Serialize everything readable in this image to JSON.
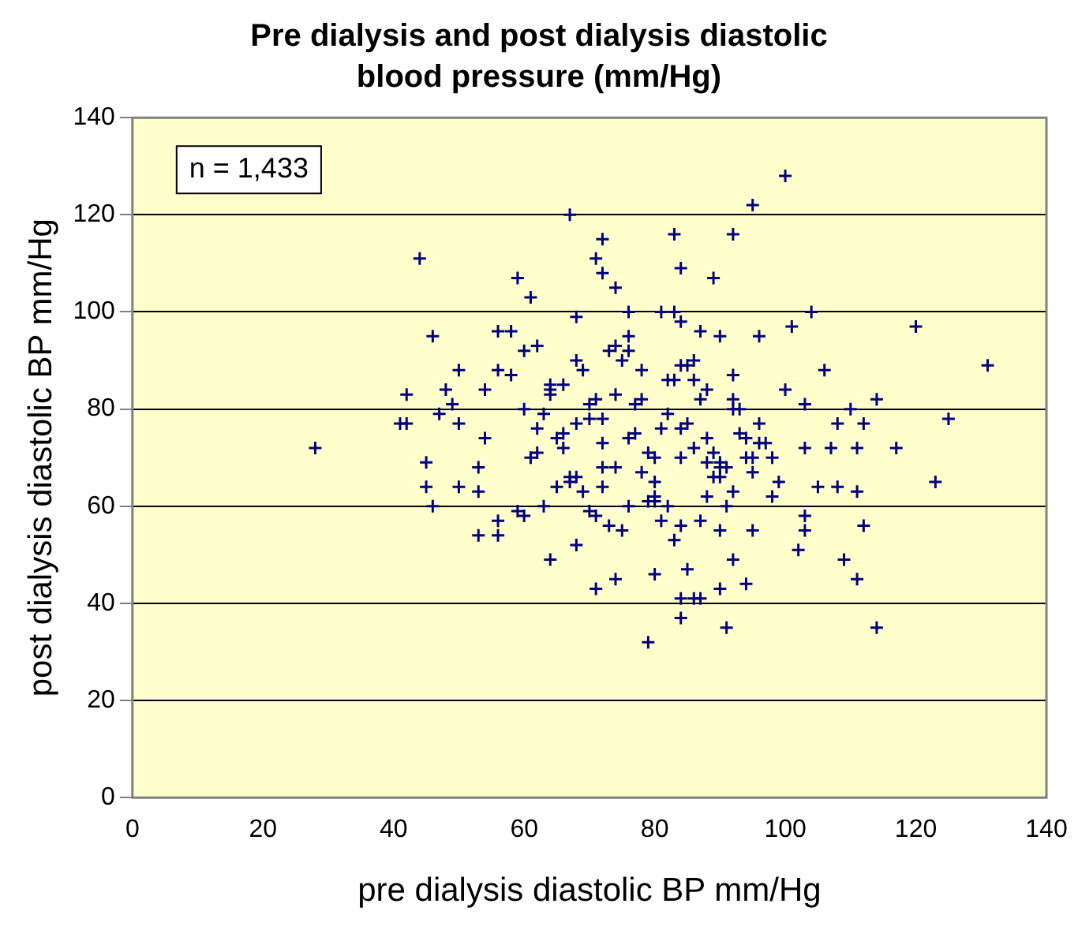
{
  "chart_data": {
    "type": "scatter",
    "title": "Pre dialysis and post dialysis diastolic blood pressure (mm/Hg)",
    "xlabel": "pre dialysis diastolic BP mm/Hg",
    "ylabel": "post dialysis diastolic BP mm/Hg",
    "annotations": [
      "n = 1,433"
    ],
    "series": [
      {
        "color": "#000080",
        "x": [
          28,
          44,
          42,
          41,
          42,
          45,
          45,
          46,
          46,
          50,
          48,
          49,
          47,
          50,
          50,
          53,
          53,
          53,
          56,
          56,
          59,
          61,
          56,
          58,
          60,
          62,
          54,
          56,
          54,
          59,
          64,
          67,
          71,
          72,
          72,
          74,
          83,
          84,
          71,
          74,
          79,
          84,
          84,
          86,
          68,
          76,
          81,
          84,
          100,
          95,
          92,
          89,
          104,
          120,
          131,
          101,
          106,
          114,
          125,
          110,
          112,
          108,
          111,
          117,
          107,
          123,
          111,
          105,
          108,
          112,
          109,
          111,
          114,
          102,
          103,
          91,
          87,
          90,
          94,
          92,
          85,
          80,
          83,
          96,
          87,
          90,
          103,
          100,
          103,
          103,
          99,
          95,
          90,
          60,
          62,
          64,
          66,
          68,
          70,
          72,
          74,
          76,
          78,
          80,
          82,
          84,
          86,
          88,
          90,
          92,
          94,
          96,
          63,
          67,
          71,
          75,
          79,
          83,
          87,
          91,
          95,
          61,
          65,
          69,
          73,
          77,
          81,
          85,
          89,
          93,
          97,
          64,
          68,
          72,
          76,
          80,
          84,
          88,
          92,
          66,
          70,
          74,
          78,
          82,
          86,
          90,
          58,
          98,
          62,
          65,
          68,
          71,
          74,
          77,
          80,
          83,
          86,
          89,
          92,
          95,
          98,
          63,
          66,
          69,
          72,
          75,
          78,
          81,
          84,
          87,
          90,
          93,
          60,
          64,
          68,
          72,
          76,
          80,
          84,
          88,
          92,
          96,
          67,
          70,
          73,
          76,
          79,
          82,
          85,
          88,
          91,
          94
        ],
        "values": [
          72,
          111,
          83,
          77,
          77,
          69,
          64,
          60,
          95,
          88,
          84,
          81,
          79,
          77,
          64,
          68,
          63,
          54,
          54,
          57,
          107,
          103,
          96,
          96,
          92,
          93,
          84,
          88,
          74,
          59,
          49,
          120,
          111,
          115,
          108,
          105,
          116,
          109,
          43,
          45,
          32,
          37,
          41,
          41,
          99,
          100,
          100,
          98,
          128,
          122,
          116,
          107,
          100,
          97,
          89,
          97,
          88,
          82,
          78,
          80,
          77,
          77,
          72,
          72,
          72,
          65,
          63,
          64,
          64,
          56,
          49,
          45,
          35,
          51,
          55,
          35,
          41,
          43,
          44,
          49,
          47,
          46,
          100,
          95,
          96,
          95,
          81,
          84,
          72,
          58,
          65,
          55,
          55,
          80,
          76,
          85,
          72,
          90,
          78,
          68,
          83,
          74,
          88,
          62,
          79,
          70,
          86,
          74,
          66,
          82,
          70,
          77,
          60,
          66,
          58,
          55,
          61,
          53,
          57,
          60,
          67,
          70,
          74,
          88,
          92,
          81,
          76,
          89,
          71,
          80,
          73,
          84,
          52,
          64,
          60,
          65,
          56,
          69,
          63,
          75,
          59,
          93,
          82,
          86,
          90,
          68,
          87,
          70,
          71,
          64,
          77,
          82,
          68,
          75,
          61,
          86,
          72,
          66,
          80,
          70,
          62,
          79,
          85,
          63,
          73,
          90,
          67,
          57,
          76,
          82,
          69,
          75,
          58,
          83,
          66,
          78,
          92,
          70,
          89,
          62,
          87,
          73,
          65,
          81,
          56,
          95,
          71,
          60,
          77,
          84,
          68,
          74
        ]
      }
    ],
    "xlim": [
      0,
      140
    ],
    "xticks": [
      0,
      20,
      40,
      60,
      80,
      100,
      120,
      140
    ],
    "ylim": [
      0,
      140
    ],
    "yticks": [
      0,
      20,
      40,
      60,
      80,
      100,
      120,
      140
    ],
    "grid": "y",
    "marker": "cross"
  }
}
